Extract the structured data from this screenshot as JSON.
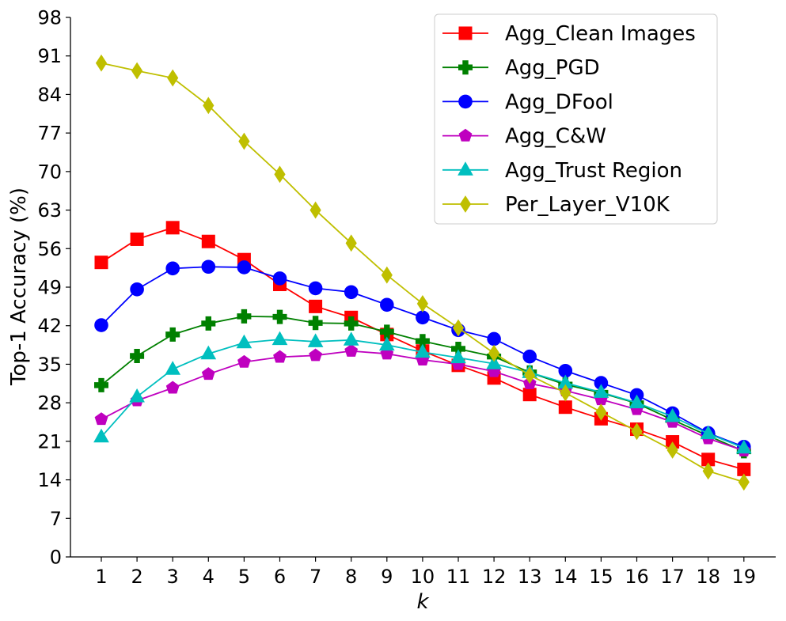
{
  "chart_data": {
    "type": "line",
    "xlabel": "k",
    "ylabel": "Top-1 Accuracy (%)",
    "x": [
      1,
      2,
      3,
      4,
      5,
      6,
      7,
      8,
      9,
      10,
      11,
      12,
      13,
      14,
      15,
      16,
      17,
      18,
      19
    ],
    "ylim": [
      0,
      98
    ],
    "yticks": [
      0,
      7,
      14,
      21,
      28,
      35,
      42,
      49,
      56,
      63,
      70,
      77,
      84,
      91,
      98
    ],
    "grid": false,
    "legend_position": "top-right",
    "series": [
      {
        "name": "Agg_Clean Images",
        "color": "#ff0000",
        "marker": "square",
        "values": [
          53.5,
          57.7,
          59.8,
          57.3,
          54.0,
          49.5,
          45.5,
          43.5,
          40.4,
          37.4,
          34.8,
          32.5,
          29.5,
          27.2,
          25.1,
          23.2,
          20.9,
          17.7,
          15.9
        ]
      },
      {
        "name": "Agg_PGD",
        "color": "#008000",
        "marker": "plus",
        "values": [
          31.2,
          36.5,
          40.4,
          42.4,
          43.7,
          43.6,
          42.5,
          42.4,
          40.9,
          39.2,
          37.8,
          36.4,
          33.5,
          31.3,
          29.8,
          27.9,
          24.9,
          22.0,
          19.2
        ]
      },
      {
        "name": "Agg_DFool",
        "color": "#0000ff",
        "marker": "circle",
        "values": [
          42.1,
          48.6,
          52.4,
          52.7,
          52.6,
          50.6,
          48.8,
          48.1,
          45.8,
          43.5,
          41.2,
          39.6,
          36.4,
          33.8,
          31.6,
          29.4,
          26.1,
          22.5,
          20.0
        ]
      },
      {
        "name": "Agg_C&W",
        "color": "#bf00bf",
        "marker": "pentagon",
        "values": [
          25.0,
          28.4,
          30.7,
          33.2,
          35.4,
          36.3,
          36.6,
          37.4,
          36.9,
          35.8,
          35.0,
          33.7,
          31.5,
          30.2,
          28.6,
          26.8,
          24.5,
          21.5,
          19.3
        ]
      },
      {
        "name": "Agg_Trust Region",
        "color": "#00bfbf",
        "marker": "triangle-up",
        "values": [
          21.8,
          29.1,
          34.1,
          36.9,
          38.9,
          39.5,
          39.1,
          39.4,
          38.5,
          37.2,
          36.2,
          35.1,
          33.5,
          31.6,
          29.9,
          28.0,
          25.5,
          22.4,
          19.8
        ]
      },
      {
        "name": "Per_Layer_V10K",
        "color": "#bfbf00",
        "marker": "thin-diamond",
        "values": [
          89.7,
          88.3,
          87.0,
          82.0,
          75.5,
          69.5,
          63.0,
          57.0,
          51.2,
          46.0,
          41.6,
          37.0,
          33.0,
          29.8,
          26.3,
          22.8,
          19.4,
          15.6,
          13.6
        ]
      }
    ]
  }
}
